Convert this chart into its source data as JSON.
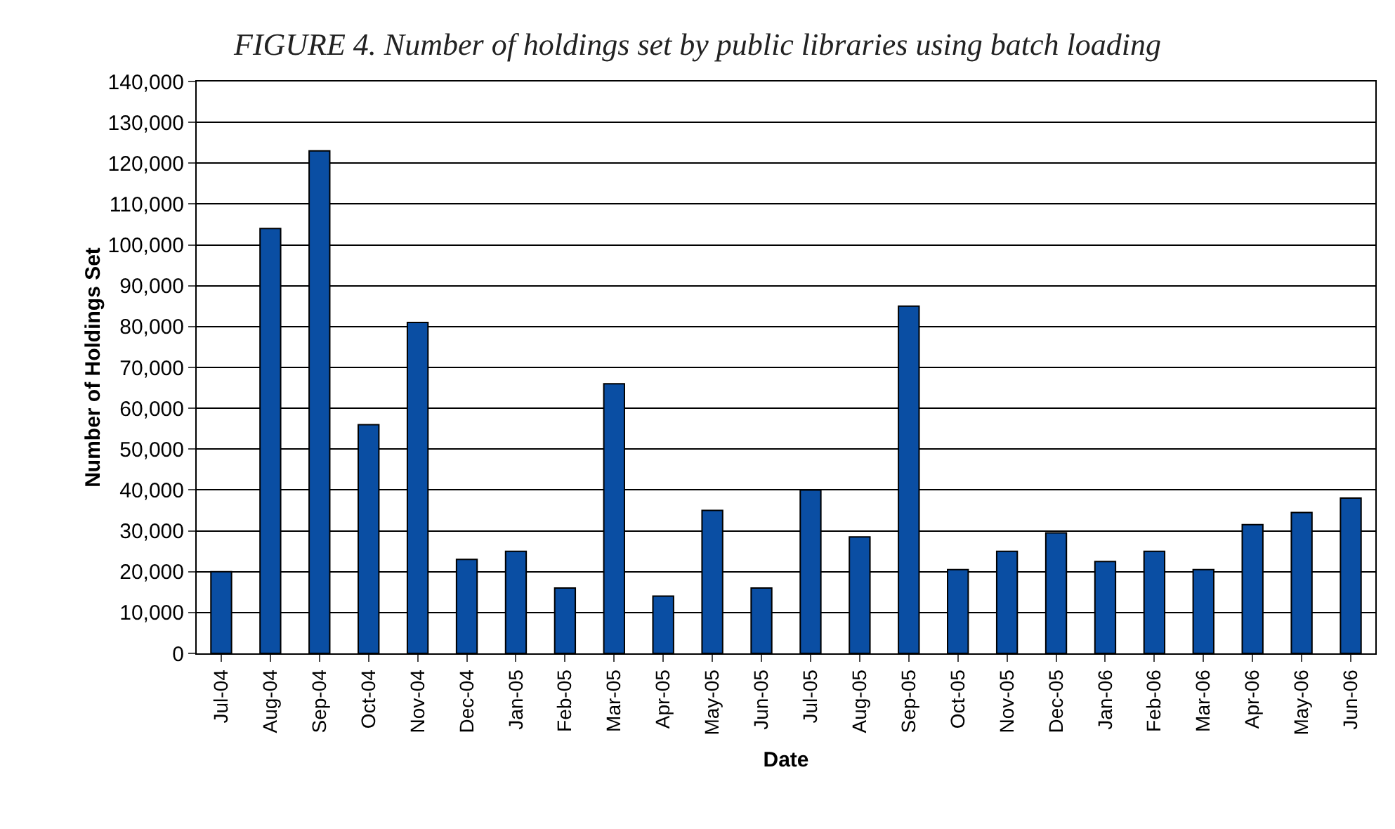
{
  "chart_data": {
    "type": "bar",
    "title": "FIGURE 4. Number of holdings set by public libraries using batch loading",
    "xlabel": "Date",
    "ylabel": "Number of Holdings Set",
    "categories": [
      "Jul-04",
      "Aug-04",
      "Sep-04",
      "Oct-04",
      "Nov-04",
      "Dec-04",
      "Jan-05",
      "Feb-05",
      "Mar-05",
      "Apr-05",
      "May-05",
      "Jun-05",
      "Jul-05",
      "Aug-05",
      "Sep-05",
      "Oct-05",
      "Nov-05",
      "Dec-05",
      "Jan-06",
      "Feb-06",
      "Mar-06",
      "Apr-06",
      "May-06",
      "Jun-06"
    ],
    "values": [
      20000,
      104000,
      123000,
      56000,
      81000,
      23000,
      25000,
      16000,
      66000,
      14000,
      35000,
      16000,
      40000,
      28500,
      85000,
      20500,
      25000,
      29500,
      22500,
      25000,
      20500,
      31500,
      34500,
      38000
    ],
    "color": "#0a4ea3",
    "ylim": [
      0,
      140000
    ],
    "yticks": [
      {
        "value": 0,
        "label": "0"
      },
      {
        "value": 10000,
        "label": "10,000"
      },
      {
        "value": 20000,
        "label": "20,000"
      },
      {
        "value": 30000,
        "label": "30,000"
      },
      {
        "value": 40000,
        "label": "40,000"
      },
      {
        "value": 50000,
        "label": "50,000"
      },
      {
        "value": 60000,
        "label": "60,000"
      },
      {
        "value": 70000,
        "label": "70,000"
      },
      {
        "value": 80000,
        "label": "80,000"
      },
      {
        "value": 90000,
        "label": "90,000"
      },
      {
        "value": 100000,
        "label": "100,000"
      },
      {
        "value": 110000,
        "label": "110,000"
      },
      {
        "value": 120000,
        "label": "120,000"
      },
      {
        "value": 130000,
        "label": "130,000"
      },
      {
        "value": 140000,
        "label": "140,000"
      }
    ],
    "grid": "y"
  }
}
